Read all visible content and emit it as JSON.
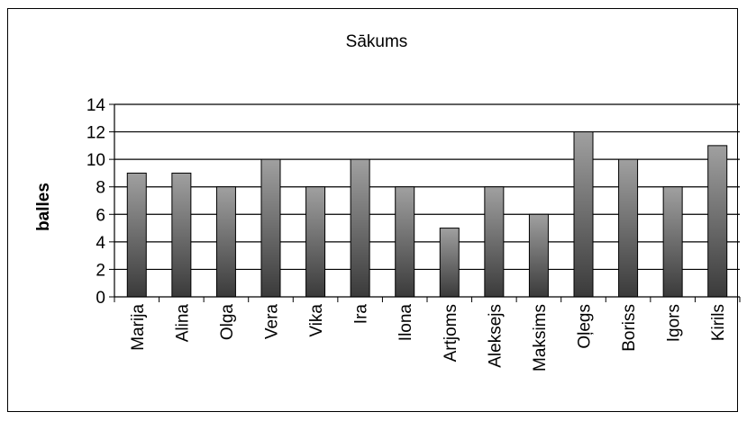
{
  "chart_data": {
    "type": "bar",
    "title": "Sākums",
    "xlabel": "",
    "ylabel": "balles",
    "ylim": [
      0,
      14
    ],
    "yticks": [
      0,
      2,
      4,
      6,
      8,
      10,
      12,
      14
    ],
    "grid": true,
    "legend": "none",
    "categories": [
      "Marija",
      "Alina",
      "Olga",
      "Vera",
      "Vika",
      "Ira",
      "Ilona",
      "Artjoms",
      "Aleksejs",
      "Maksims",
      "Oļegs",
      "Boriss",
      "Igors",
      "Kirils"
    ],
    "values": [
      9,
      9,
      8,
      10,
      8,
      10,
      8,
      5,
      8,
      6,
      12,
      10,
      8,
      11
    ],
    "bar_color_top": "#a0a0a0",
    "bar_color_bottom": "#3a3a3a"
  }
}
